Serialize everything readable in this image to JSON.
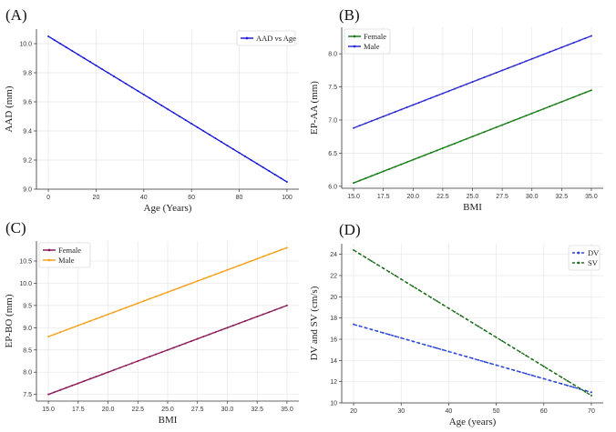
{
  "figure_title": "",
  "chart_data": [
    {
      "panel_label": "(A)",
      "type": "line",
      "x": [
        0,
        100
      ],
      "series": [
        {
          "name": "AAD vs Age",
          "values": [
            10.05,
            9.05
          ],
          "color": "#1f1fd6",
          "style": "solid"
        }
      ],
      "xlabel": "Age (Years)",
      "ylabel": "AAD (mm)",
      "xlim": [
        -5,
        105
      ],
      "ylim": [
        9.0,
        10.1
      ],
      "xticks": [
        0,
        20,
        40,
        60,
        80,
        100
      ],
      "xtick_labels": [
        "0",
        "20",
        "40",
        "60",
        "80",
        "100"
      ],
      "yticks": [
        9.0,
        9.2,
        9.4,
        9.6,
        9.8,
        10.0
      ],
      "ytick_labels": [
        "9.0",
        "9.2",
        "9.4",
        "9.6",
        "9.8",
        "10.0"
      ],
      "grid": true,
      "legend_position": "top-right"
    },
    {
      "panel_label": "(B)",
      "type": "line",
      "x": [
        15,
        35
      ],
      "series": [
        {
          "name": "Female",
          "values": [
            6.05,
            7.45
          ],
          "color": "#1a7f1a",
          "style": "solid"
        },
        {
          "name": "Male",
          "values": [
            6.88,
            8.27
          ],
          "color": "#2d2dd0",
          "style": "solid"
        }
      ],
      "xlabel": "BMI",
      "ylabel": "EP-AA (mm)",
      "xlim": [
        14,
        36
      ],
      "ylim": [
        5.97,
        8.4
      ],
      "xticks": [
        15,
        17.5,
        20,
        22.5,
        25,
        27.5,
        30,
        32.5,
        35
      ],
      "xtick_labels": [
        "15.0",
        "17.5",
        "20.0",
        "22.5",
        "25.0",
        "27.5",
        "30.0",
        "32.5",
        "35.0"
      ],
      "yticks": [
        6.0,
        6.5,
        7.0,
        7.5,
        8.0
      ],
      "ytick_labels": [
        "6.0",
        "6.5",
        "7.0",
        "7.5",
        "8.0"
      ],
      "grid": true,
      "legend_position": "top-left"
    },
    {
      "panel_label": "(C)",
      "type": "line",
      "x": [
        15,
        35
      ],
      "series": [
        {
          "name": "Female",
          "values": [
            7.5,
            9.5
          ],
          "color": "#8b1a5a",
          "style": "solid"
        },
        {
          "name": "Male",
          "values": [
            8.8,
            10.8
          ],
          "color": "#f5a11b",
          "style": "solid"
        }
      ],
      "xlabel": "BMI",
      "ylabel": "EP-BO (mm)",
      "xlim": [
        14,
        36
      ],
      "ylim": [
        7.35,
        10.95
      ],
      "xticks": [
        15,
        17.5,
        20,
        22.5,
        25,
        27.5,
        30,
        32.5,
        35
      ],
      "xtick_labels": [
        "15.0",
        "17.5",
        "20.0",
        "22.5",
        "25.0",
        "27.5",
        "30.0",
        "32.5",
        "35.0"
      ],
      "yticks": [
        7.5,
        8.0,
        8.5,
        9.0,
        9.5,
        10.0,
        10.5
      ],
      "ytick_labels": [
        "7.5",
        "8.0",
        "8.5",
        "9.0",
        "9.5",
        "10.0",
        "10.5"
      ],
      "grid": true,
      "legend_position": "top-left"
    },
    {
      "panel_label": "(D)",
      "type": "line",
      "x": [
        20,
        70
      ],
      "series": [
        {
          "name": "DV",
          "values": [
            17.4,
            11.0
          ],
          "color": "#2a45d8",
          "style": "dashed"
        },
        {
          "name": "SV",
          "values": [
            24.4,
            10.7
          ],
          "color": "#1f6e1f",
          "style": "dashed"
        }
      ],
      "xlabel": "Age (years)",
      "ylabel": "DV and SV (cm/s)",
      "xlim": [
        17.5,
        72.5
      ],
      "ylim": [
        10,
        25
      ],
      "xticks": [
        20,
        30,
        40,
        50,
        60,
        70
      ],
      "xtick_labels": [
        "20",
        "30",
        "40",
        "50",
        "60",
        "70"
      ],
      "yticks": [
        10,
        12,
        14,
        16,
        18,
        20,
        22,
        24
      ],
      "ytick_labels": [
        "10",
        "12",
        "14",
        "16",
        "18",
        "20",
        "22",
        "24"
      ],
      "grid": true,
      "legend_position": "top-right"
    }
  ]
}
